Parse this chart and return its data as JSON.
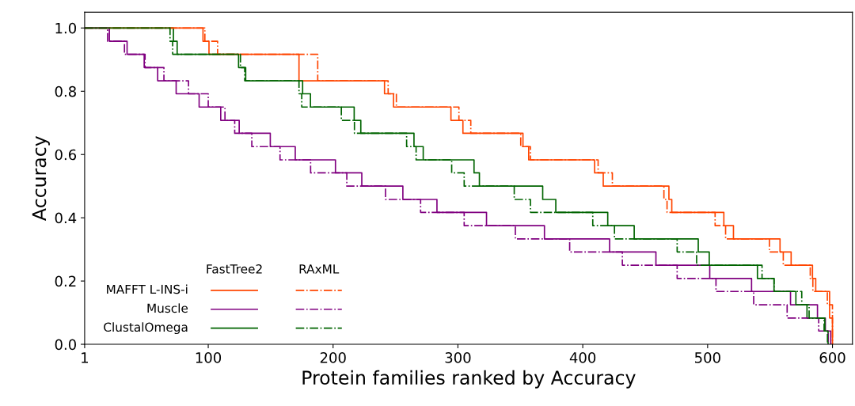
{
  "chart_data": {
    "type": "step",
    "xlabel": "Protein families ranked by Accuracy",
    "ylabel": "Accuracy",
    "xlim": [
      1,
      616
    ],
    "xticks": [
      1,
      100,
      200,
      300,
      400,
      500,
      600
    ],
    "ylim": [
      0,
      1.05
    ],
    "yticks": [
      {
        "value": 0,
        "label": "0.0"
      },
      {
        "value": 0.2,
        "label": "0.2"
      },
      {
        "value": 0.4,
        "label": "0.4"
      },
      {
        "value": 0.6,
        "label": "0.6"
      },
      {
        "value": 0.8,
        "label": "0.8"
      },
      {
        "value": 1.0,
        "label": "1.0"
      }
    ],
    "grid": false,
    "legend": "bottom left",
    "annotations": [
      "FastTree2",
      "RAxML"
    ],
    "series": [
      {
        "name": "MAFFT L-INS-i",
        "color": "#ff4500",
        "line_style": "solid",
        "x": [
          1,
          95.8,
          100.6,
          172.7,
          241.2,
          248.4,
          294.4,
          304,
          352.1,
          356.7,
          409.5,
          416.4,
          469,
          471.3,
          513,
          520.7,
          558,
          566.9,
          584,
          586.6,
          597.7,
          600
        ],
        "values": [
          1,
          0.958,
          0.917,
          0.833,
          0.792,
          0.75,
          0.708,
          0.667,
          0.625,
          0.583,
          0.542,
          0.5,
          0.458,
          0.417,
          0.375,
          0.333,
          0.292,
          0.25,
          0.208,
          0.167,
          0.083,
          0
        ]
      },
      {
        "name": "Muscle",
        "color": "#800080",
        "line_style": "solid",
        "x": [
          1,
          20.8,
          35,
          48.7,
          59.5,
          74.3,
          92.7,
          110,
          124.8,
          149.7,
          169.7,
          201.9,
          223,
          255.9,
          283.2,
          322.9,
          369.3,
          421.5,
          458.6,
          501.7,
          535.2,
          566.4,
          588,
          594.3,
          598.6
        ],
        "values": [
          1,
          0.958,
          0.917,
          0.875,
          0.833,
          0.792,
          0.75,
          0.708,
          0.667,
          0.625,
          0.583,
          0.542,
          0.5,
          0.458,
          0.417,
          0.375,
          0.333,
          0.292,
          0.25,
          0.208,
          0.167,
          0.125,
          0.083,
          0.042,
          0
        ]
      },
      {
        "name": "ClustalOmega",
        "color": "#006400",
        "line_style": "solid",
        "x": [
          1,
          72.1,
          75.1,
          124.3,
          130,
          175.6,
          181.9,
          216.9,
          222.2,
          264.8,
          272.2,
          312.9,
          317.2,
          367.9,
          378.4,
          420,
          441.2,
          492.5,
          501.3,
          539.9,
          553.2,
          570.7,
          579.6,
          593.9,
          596.5
        ],
        "values": [
          1,
          0.958,
          0.917,
          0.875,
          0.833,
          0.792,
          0.75,
          0.708,
          0.667,
          0.625,
          0.583,
          0.542,
          0.5,
          0.458,
          0.417,
          0.375,
          0.333,
          0.292,
          0.25,
          0.208,
          0.167,
          0.125,
          0.083,
          0.042,
          0
        ]
      },
      {
        "color": "#ff4500",
        "line_style": "dashdot",
        "x": [
          1,
          97.3,
          107.5,
          187.7,
          244.1,
          250.7,
          300.8,
          310.3,
          350.3,
          358.1,
          412.3,
          423.7,
          465,
          467.5,
          506,
          514.4,
          549.5,
          560.6,
          582.2,
          584.3,
          595.9,
          600
        ],
        "values": [
          1,
          0.958,
          0.917,
          0.833,
          0.792,
          0.75,
          0.708,
          0.667,
          0.625,
          0.583,
          0.542,
          0.5,
          0.458,
          0.417,
          0.375,
          0.333,
          0.292,
          0.25,
          0.208,
          0.167,
          0.125,
          0
        ]
      },
      {
        "color": "#800080",
        "line_style": "dashdot",
        "x": [
          1,
          19.4,
          32.9,
          49.4,
          64.5,
          84.2,
          100,
          113.4,
          121.2,
          134.9,
          157.5,
          182,
          211,
          242,
          270.1,
          305,
          346,
          389.5,
          431.7,
          475.6,
          506.7,
          536.9,
          563.7,
          589,
          596.5
        ],
        "values": [
          1,
          0.958,
          0.917,
          0.875,
          0.833,
          0.792,
          0.75,
          0.708,
          0.667,
          0.625,
          0.583,
          0.542,
          0.5,
          0.458,
          0.417,
          0.375,
          0.333,
          0.292,
          0.25,
          0.208,
          0.167,
          0.125,
          0.083,
          0.042,
          0
        ]
      },
      {
        "color": "#006400",
        "line_style": "dashdot",
        "x": [
          1,
          69.4,
          71.5,
          125.8,
          129.2,
          172.7,
          174.9,
          206.6,
          217.1,
          258.9,
          266.5,
          295,
          305,
          345.1,
          358.1,
          408,
          425.4,
          475.6,
          491.2,
          543.6,
          553.2,
          575.4,
          581.3,
          593.3,
          596
        ],
        "values": [
          1,
          0.958,
          0.917,
          0.875,
          0.833,
          0.792,
          0.75,
          0.708,
          0.667,
          0.625,
          0.583,
          0.542,
          0.5,
          0.458,
          0.417,
          0.375,
          0.333,
          0.292,
          0.25,
          0.208,
          0.167,
          0.125,
          0.083,
          0.042,
          0
        ]
      }
    ]
  }
}
